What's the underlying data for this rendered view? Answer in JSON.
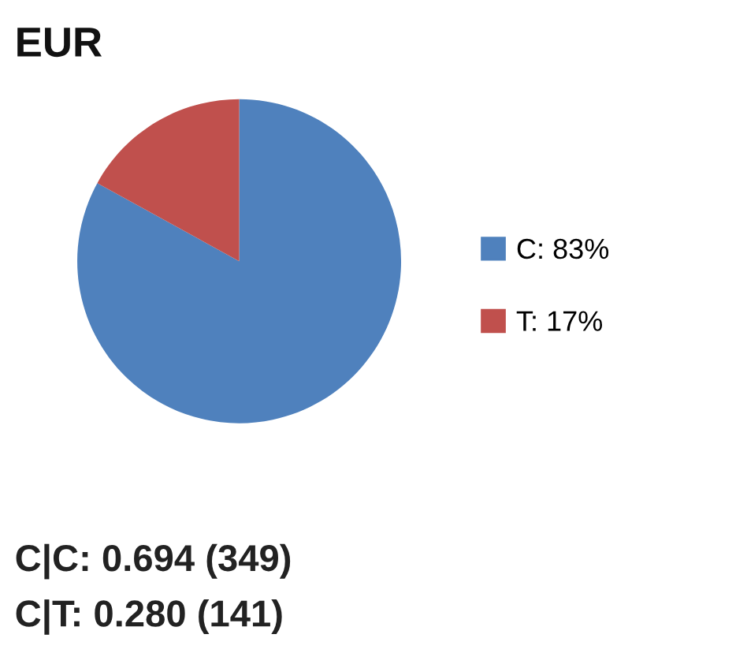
{
  "chart_data": {
    "type": "pie",
    "title": "EUR",
    "categories": [
      "C",
      "T"
    ],
    "values": [
      83,
      17
    ],
    "value_labels": [
      "83%",
      "17%"
    ],
    "colors": [
      "#4f81bd",
      "#c0504d"
    ],
    "legend": "right",
    "annotations": [
      "C|C: 0.694 (349)",
      "C|T: 0.280 (141)"
    ]
  }
}
